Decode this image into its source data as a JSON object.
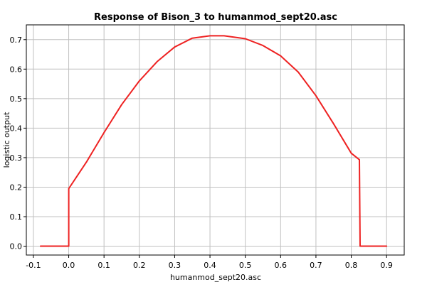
{
  "chart_data": {
    "type": "line",
    "title": "Response of Bison_3 to humanmod_sept20.asc",
    "xlabel": "humanmod_sept20.asc",
    "ylabel": "logistic output",
    "xlim": [
      -0.12,
      0.95
    ],
    "ylim": [
      -0.03,
      0.75
    ],
    "x_ticks": [
      -0.1,
      0.0,
      0.1,
      0.2,
      0.3,
      0.4,
      0.5,
      0.6,
      0.7,
      0.8,
      0.9
    ],
    "x_tick_labels": [
      "-0.1",
      "0.0",
      "0.1",
      "0.2",
      "0.3",
      "0.4",
      "0.5",
      "0.6",
      "0.7",
      "0.8",
      "0.9"
    ],
    "y_ticks": [
      0.0,
      0.1,
      0.2,
      0.3,
      0.4,
      0.5,
      0.6,
      0.7
    ],
    "y_tick_labels": [
      "0.0",
      "0.1",
      "0.2",
      "0.3",
      "0.4",
      "0.5",
      "0.6",
      "0.7"
    ],
    "grid": true,
    "line_color": "#ee2222",
    "series": [
      {
        "x": [
          -0.08,
          0.0,
          0.0,
          0.05,
          0.1,
          0.15,
          0.2,
          0.25,
          0.3,
          0.35,
          0.4,
          0.44,
          0.5,
          0.55,
          0.6,
          0.65,
          0.7,
          0.75,
          0.8,
          0.823,
          0.825,
          0.9
        ],
        "y": [
          0.0,
          0.0,
          0.195,
          0.285,
          0.385,
          0.48,
          0.56,
          0.625,
          0.675,
          0.705,
          0.713,
          0.713,
          0.703,
          0.68,
          0.645,
          0.59,
          0.51,
          0.415,
          0.315,
          0.293,
          0.0,
          0.0
        ]
      }
    ]
  }
}
